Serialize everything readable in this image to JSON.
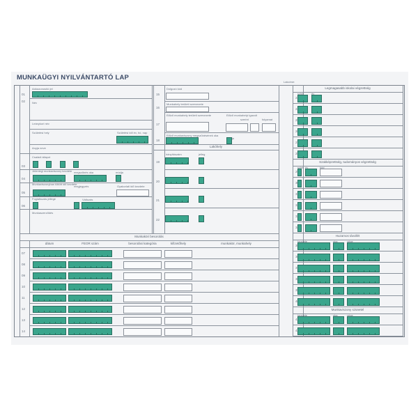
{
  "title": "MUNKAÜGYI NYILVÁNTARTÓ LAP",
  "colors": {
    "field_fill": "#3aa58c",
    "line": "#8a929c",
    "title": "#3b4a66"
  },
  "top_right_label": "Lakcíme:",
  "left": {
    "rows": [
      {
        "no": "01",
        "label": "Adóazonosító jel"
      },
      {
        "no": "02",
        "label": "Név"
      },
      {
        "no": "",
        "label": "Leánykori név"
      },
      {
        "no": "",
        "label": "Születési hely",
        "label2": "Születési idő év, hó, nap"
      },
      {
        "no": "",
        "label": "Anyja neve"
      },
      {
        "no": "03",
        "label": "Családi állapot"
      },
      {
        "no": "04",
        "label": "Jelenlegi munkaviszony kezdete",
        "label2": "megszűnés oka",
        "label3": "módja"
      },
      {
        "no": "05",
        "label": "Munkaviszonyban töltött idő kezdete",
        "label2": "megjegyzés",
        "label3": "Gyakorlati idő kezdete"
      },
      {
        "no": "06",
        "label": "Foglalkozás jellege",
        "label2": "Változás"
      },
      {
        "no": "",
        "label": "Munkaszerződés"
      }
    ]
  },
  "middle": {
    "rows": [
      {
        "no": "15",
        "label": "Dolgozó kód"
      },
      {
        "no": "16",
        "label": "Munkahely területi szervezete"
      },
      {
        "no": "17",
        "label": "Előző munkahely területi szervezete",
        "label2": "Előző munkahelyi igazolt",
        "label3": "szerint",
        "label4": "folyamat"
      },
      {
        "no": "18",
        "label": "Előző munkaviszony megszűnésének oka",
        "label2": "módja"
      }
    ],
    "residence_header": "Lakóhely",
    "residence_cols": [
      "irányítószám",
      "jelleg"
    ],
    "residence_rows": [
      "19",
      "20",
      "21",
      "22"
    ]
  },
  "job": {
    "header": "Munkaköri besorolás",
    "columns": [
      "dátum",
      "FEOR szám",
      "besorolási kategória",
      "kifizetőhely",
      "munkakör, munkahely"
    ],
    "rows": [
      "07",
      "08",
      "09",
      "10",
      "11",
      "12",
      "13",
      "14"
    ]
  },
  "right": {
    "sections": [
      {
        "header": "Legmagasabb iskolai végzettség",
        "cols": [
          "szint",
          "év"
        ],
        "rows": [
          "23",
          "24",
          "25",
          "26",
          "27",
          "28"
        ]
      },
      {
        "header": "Szakképzettség, tudományos végzettség",
        "cols": [
          "szint",
          "év",
          "kód"
        ],
        "rows": [
          "29",
          "30",
          "31",
          "32",
          "33",
          "34"
        ]
      },
      {
        "header": "Huzamos távollét",
        "cols": [
          "kezdete",
          "oka",
          "vége"
        ],
        "rows": [
          "35",
          "36",
          "37",
          "38",
          "39",
          "40"
        ]
      },
      {
        "header": "Munkaviszony szünetel",
        "cols": [
          "kezdete",
          "oka",
          "vége"
        ],
        "rows": [
          "41",
          "42"
        ]
      }
    ]
  }
}
